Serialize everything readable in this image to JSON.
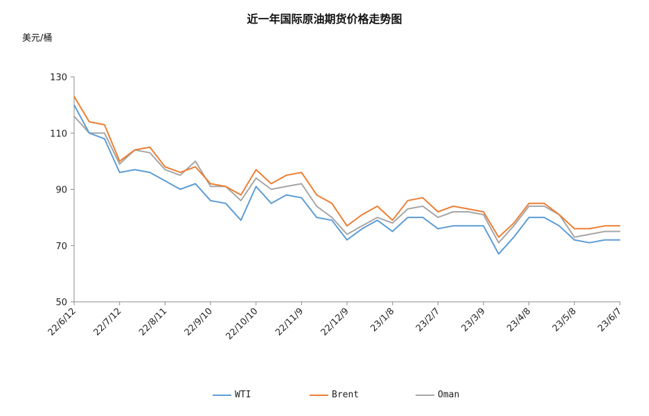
{
  "chart_data": {
    "type": "line",
    "title": "近一年国际原油期货价格走势图",
    "ylabel": "美元/桶",
    "xlabel": "",
    "ylim": [
      50,
      130
    ],
    "yticks": [
      50,
      70,
      90,
      110,
      130
    ],
    "xticks": [
      {
        "label": "22/6/12",
        "date": "2022-06-12"
      },
      {
        "label": "22/7/12",
        "date": "2022-07-12"
      },
      {
        "label": "22/8/11",
        "date": "2022-08-11"
      },
      {
        "label": "22/9/10",
        "date": "2022-09-10"
      },
      {
        "label": "22/10/10",
        "date": "2022-10-10"
      },
      {
        "label": "22/11/9",
        "date": "2022-11-09"
      },
      {
        "label": "22/12/9",
        "date": "2022-12-09"
      },
      {
        "label": "23/1/8",
        "date": "2023-01-08"
      },
      {
        "label": "23/2/7",
        "date": "2023-02-07"
      },
      {
        "label": "23/3/9",
        "date": "2023-03-09"
      },
      {
        "label": "23/4/8",
        "date": "2023-04-08"
      },
      {
        "label": "23/5/8",
        "date": "2023-05-08"
      },
      {
        "label": "23/6/7",
        "date": "2023-06-07"
      }
    ],
    "grid": false,
    "legend": "bottom",
    "x": [
      "2022-06-12",
      "2022-06-22",
      "2022-07-02",
      "2022-07-12",
      "2022-07-22",
      "2022-08-01",
      "2022-08-11",
      "2022-08-21",
      "2022-08-31",
      "2022-09-10",
      "2022-09-20",
      "2022-09-30",
      "2022-10-10",
      "2022-10-20",
      "2022-10-30",
      "2022-11-09",
      "2022-11-19",
      "2022-11-29",
      "2022-12-09",
      "2022-12-19",
      "2022-12-29",
      "2023-01-08",
      "2023-01-18",
      "2023-01-28",
      "2023-02-07",
      "2023-02-17",
      "2023-02-27",
      "2023-03-09",
      "2023-03-19",
      "2023-03-29",
      "2023-04-08",
      "2023-04-18",
      "2023-04-28",
      "2023-05-08",
      "2023-05-18",
      "2023-05-28",
      "2023-06-07"
    ],
    "series": [
      {
        "name": "WTI",
        "color": "#5b9bd5",
        "values": [
          120,
          110,
          108,
          96,
          97,
          96,
          93,
          90,
          92,
          86,
          85,
          79,
          91,
          85,
          88,
          87,
          80,
          79,
          72,
          76,
          79,
          75,
          80,
          80,
          76,
          77,
          77,
          77,
          67,
          73,
          80,
          80,
          77,
          72,
          71,
          72,
          72
        ]
      },
      {
        "name": "Brent",
        "color": "#ed7d31",
        "values": [
          123,
          114,
          113,
          100,
          104,
          105,
          98,
          96,
          98,
          92,
          91,
          88,
          97,
          92,
          95,
          96,
          88,
          85,
          77,
          81,
          84,
          79,
          86,
          87,
          82,
          84,
          83,
          82,
          73,
          78,
          85,
          85,
          81,
          76,
          76,
          77,
          77
        ]
      },
      {
        "name": "Oman",
        "color": "#a5a5a5",
        "values": [
          116,
          110,
          110,
          99,
          104,
          103,
          97,
          95,
          100,
          91,
          91,
          86,
          94,
          90,
          91,
          92,
          84,
          80,
          74,
          77,
          80,
          78,
          83,
          84,
          80,
          82,
          82,
          81,
          71,
          77,
          84,
          84,
          81,
          73,
          74,
          75,
          75
        ]
      }
    ]
  }
}
